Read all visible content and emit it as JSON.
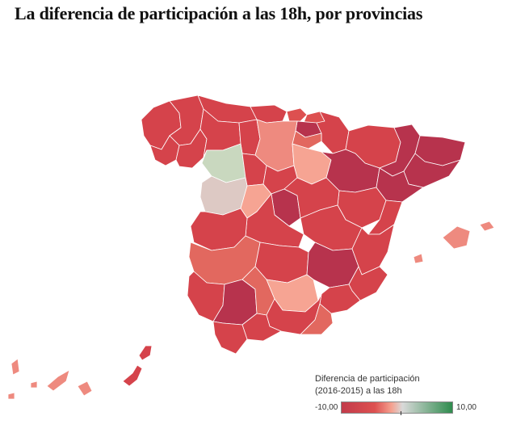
{
  "title": "La diferencia de participación a las 18h, por provincias",
  "colors": {
    "deep": "#b7334d",
    "strong": "#d5434b",
    "medium": "#dd5050",
    "soft": "#e2685f",
    "light": "#ee8a7f",
    "pale": "#f6a493",
    "neutral": "#ddc9c4",
    "green": "#c9d8bf",
    "scale_low": "#c23b4a",
    "scale_mid": "#f5a08f",
    "scale_neutral": "#d9d9d9",
    "scale_high": "#2f8c4e"
  },
  "legend": {
    "title_line1": "Diferencia de participación",
    "title_line2": "(2016-2015) a las 18h",
    "min_label": "-10,00",
    "max_label": "10,00"
  }
}
